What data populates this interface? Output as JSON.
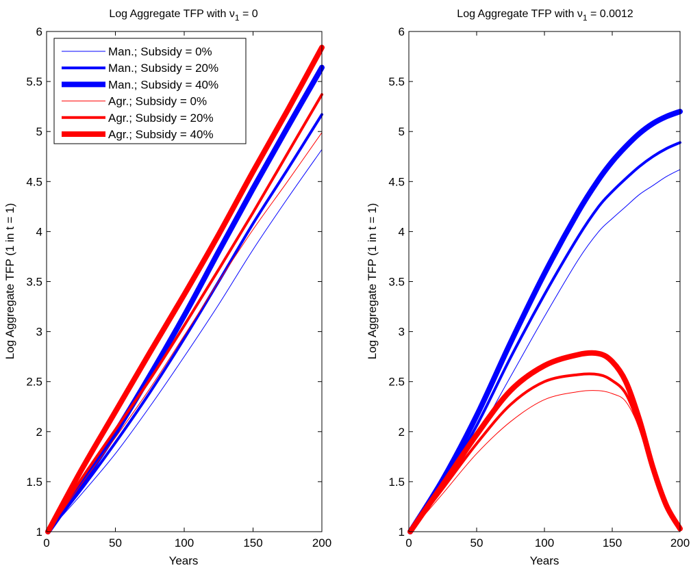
{
  "chart_data": [
    {
      "type": "line",
      "title": "Log Aggregate TFP with ν",
      "title_sub": "1",
      "title_suffix": " = 0",
      "xlabel": "Years",
      "ylabel": "Log Aggregate TFP (1 in t = 1)",
      "xlim": [
        0,
        200
      ],
      "ylim": [
        1,
        6
      ],
      "x_ticks": [
        "0",
        "50",
        "100",
        "150",
        "200"
      ],
      "y_ticks": [
        "1",
        "1.5",
        "2",
        "2.5",
        "3",
        "3.5",
        "4",
        "4.5",
        "5",
        "5.5",
        "6"
      ],
      "grid": false,
      "legend_position": "top-left",
      "x": [
        1,
        25,
        50,
        75,
        100,
        125,
        150,
        175,
        200
      ],
      "series": [
        {
          "name": "Man.; Subsidy = 0%",
          "color": "#0000ff",
          "line_weight": "thin",
          "values": [
            1.0,
            1.37,
            1.78,
            2.25,
            2.75,
            3.27,
            3.82,
            4.33,
            4.82
          ]
        },
        {
          "name": "Man.; Subsidy = 20%",
          "color": "#0000ff",
          "line_weight": "medium",
          "values": [
            1.0,
            1.42,
            1.89,
            2.39,
            2.93,
            3.5,
            4.08,
            4.62,
            5.17
          ]
        },
        {
          "name": "Man.; Subsidy = 40%",
          "color": "#0000ff",
          "line_weight": "thick",
          "values": [
            1.0,
            1.47,
            1.99,
            2.56,
            3.16,
            3.8,
            4.43,
            5.04,
            5.64
          ]
        },
        {
          "name": "Agr.; Subsidy = 0%",
          "color": "#ff0000",
          "line_weight": "thin",
          "values": [
            1.0,
            1.47,
            1.94,
            2.43,
            2.96,
            3.5,
            4.02,
            4.5,
            4.99
          ]
        },
        {
          "name": "Agr.; Subsidy = 20%",
          "color": "#ff0000",
          "line_weight": "medium",
          "values": [
            1.0,
            1.52,
            2.02,
            2.52,
            3.06,
            3.62,
            4.19,
            4.78,
            5.37
          ]
        },
        {
          "name": "Agr.; Subsidy = 40%",
          "color": "#ff0000",
          "line_weight": "thick",
          "values": [
            1.0,
            1.61,
            2.2,
            2.79,
            3.37,
            3.97,
            4.6,
            5.21,
            5.84
          ]
        }
      ]
    },
    {
      "type": "line",
      "title": "Log Aggregate TFP with ν",
      "title_sub": "1",
      "title_suffix": " = 0.0012",
      "xlabel": "Years",
      "ylabel": "Log Aggregate TFP (1 in t = 1)",
      "xlim": [
        0,
        200
      ],
      "ylim": [
        1,
        6
      ],
      "x_ticks": [
        "0",
        "50",
        "100",
        "150",
        "200"
      ],
      "y_ticks": [
        "1",
        "1.5",
        "2",
        "2.5",
        "3",
        "3.5",
        "4",
        "4.5",
        "5",
        "5.5",
        "6"
      ],
      "grid": false,
      "x": [
        1,
        25,
        50,
        75,
        100,
        125,
        140,
        150,
        160,
        170,
        180,
        190,
        200
      ],
      "series": [
        {
          "color": "#0000ff",
          "line_weight": "thin",
          "values": [
            1.0,
            1.42,
            1.95,
            2.55,
            3.15,
            3.72,
            4.0,
            4.13,
            4.25,
            4.37,
            4.46,
            4.55,
            4.62
          ]
        },
        {
          "color": "#0000ff",
          "line_weight": "medium",
          "values": [
            1.0,
            1.47,
            2.06,
            2.74,
            3.37,
            3.95,
            4.25,
            4.4,
            4.53,
            4.65,
            4.75,
            4.83,
            4.89
          ]
        },
        {
          "color": "#0000ff",
          "line_weight": "thick",
          "values": [
            1.0,
            1.52,
            2.16,
            2.89,
            3.58,
            4.2,
            4.52,
            4.7,
            4.85,
            4.98,
            5.08,
            5.15,
            5.2
          ]
        },
        {
          "color": "#ff0000",
          "line_weight": "thin",
          "values": [
            1.0,
            1.38,
            1.78,
            2.1,
            2.32,
            2.4,
            2.41,
            2.38,
            2.3,
            2.03,
            1.6,
            1.25,
            1.04
          ]
        },
        {
          "color": "#ff0000",
          "line_weight": "medium",
          "values": [
            1.0,
            1.43,
            1.88,
            2.27,
            2.5,
            2.57,
            2.57,
            2.51,
            2.38,
            2.05,
            1.62,
            1.25,
            1.03
          ]
        },
        {
          "color": "#ff0000",
          "line_weight": "thick",
          "values": [
            1.0,
            1.47,
            1.97,
            2.41,
            2.66,
            2.77,
            2.78,
            2.7,
            2.5,
            2.12,
            1.64,
            1.26,
            1.03
          ]
        }
      ]
    }
  ]
}
